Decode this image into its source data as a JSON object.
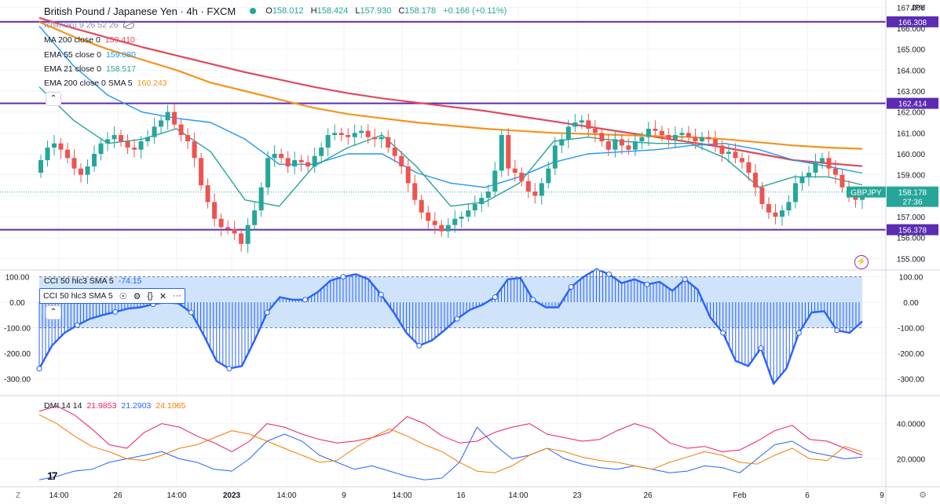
{
  "header": {
    "title": "British Pound / Japanese Yen · 4h · FXCM",
    "open_label": "O",
    "open": "158.012",
    "high_label": "H",
    "high": "158.424",
    "low_label": "L",
    "low": "157.930",
    "close_label": "C",
    "close": "158.178",
    "change": "+0.166 (+0.11%)"
  },
  "currency": "JPY",
  "legends": {
    "ichimoku": "Ichimoku 9 26 52 26",
    "ma200": {
      "label": "MA 200 close 0",
      "value": "159.410",
      "color": "#e0495e"
    },
    "ema55": {
      "label": "EMA 55 close 0",
      "value": "159.080",
      "color": "#2196f3"
    },
    "ema21": {
      "label": "EMA 21 close 0",
      "value": "158.517",
      "color": "#26a69a"
    },
    "ema200": {
      "label": "EMA 200 close 0 SMA 5",
      "value": "160.243",
      "color": "#f7931a"
    },
    "cci": {
      "label": "CCI 50 hlc3 SMA 5",
      "value": "-74.15"
    },
    "cci_toolbar": "CCI 50 hlc3 SMA 5",
    "dmi": {
      "label": "DMI 14 14",
      "plus": "21.9853",
      "minus": "21.2903",
      "adx": "24.1065"
    }
  },
  "symbol_tag": {
    "name": "GBPJPY",
    "price": "158.178",
    "countdown": "27:36"
  },
  "icons": {
    "visibility": "eye-icon",
    "settings": "gear-icon",
    "code": "braces-icon",
    "remove": "close-icon",
    "more": "more-icon",
    "collapse": "chevron-up-icon",
    "flash": "lightning-icon",
    "logo": "tradingview-logo"
  },
  "colors": {
    "up": "#26a69a",
    "down": "#ef5350",
    "level_line": "#5b2bb0",
    "cci_line": "#2962ff",
    "cci_band": "#cfe3fb",
    "dmi_plus": "#e91e63",
    "dmi_minus": "#2962ff",
    "dmi_adx": "#f57c00",
    "tag_bg": "#26a69a"
  },
  "x_axis": {
    "labels": [
      "14:00",
      "26",
      "14:00",
      "2023",
      "14:00",
      "9",
      "14:00",
      "16",
      "14:00",
      "23",
      "26",
      "Feb",
      "6",
      "9"
    ]
  },
  "bottom": {
    "tz_label": "Z"
  },
  "chart_data": [
    {
      "type": "candlestick",
      "title": "British Pound / Japanese Yen · 4h · FXCM",
      "y_axis_labels": [
        "167.000",
        "166.000",
        "165.000",
        "164.000",
        "163.000",
        "162.000",
        "161.000",
        "160.000",
        "159.000",
        "158.000",
        "157.000",
        "156.000",
        "155.000"
      ],
      "ylim": [
        154.6,
        167.2
      ],
      "horizontal_levels": [
        {
          "label": "166.308",
          "value": 166.308
        },
        {
          "label": "162.414",
          "value": 162.414
        },
        {
          "label": "156.378",
          "value": 156.378
        }
      ],
      "last_price": 158.178,
      "close_path": [
        159.7,
        160.3,
        160.5,
        160.2,
        159.8,
        159.3,
        159.0,
        159.4,
        160.0,
        160.5,
        160.7,
        160.9,
        160.6,
        160.3,
        160.2,
        160.6,
        160.8,
        161.3,
        161.6,
        162.0,
        161.4,
        160.9,
        160.6,
        159.8,
        158.5,
        157.7,
        156.9,
        156.5,
        156.4,
        156.2,
        155.7,
        156.6,
        157.3,
        158.4,
        159.8,
        160.0,
        159.8,
        159.4,
        159.7,
        159.6,
        159.4,
        159.9,
        160.3,
        160.9,
        161.0,
        160.9,
        160.8,
        161.0,
        161.1,
        160.8,
        160.7,
        160.8,
        160.3,
        159.9,
        159.4,
        158.6,
        157.8,
        157.2,
        156.8,
        156.6,
        156.3,
        156.6,
        156.9,
        157.0,
        157.3,
        157.6,
        157.9,
        158.2,
        159.2,
        160.9,
        159.3,
        159.1,
        158.7,
        158.2,
        158.0,
        158.6,
        159.3,
        160.4,
        160.7,
        161.3,
        161.5,
        161.6,
        161.2,
        161.0,
        160.6,
        160.2,
        160.7,
        160.4,
        160.2,
        160.6,
        160.8,
        161.2,
        161.1,
        160.9,
        160.7,
        160.9,
        161.0,
        160.8,
        160.6,
        160.8,
        160.7,
        160.4,
        160.0,
        160.1,
        159.8,
        159.6,
        159.1,
        158.4,
        157.6,
        157.2,
        157.0,
        157.3,
        157.7,
        158.6,
        158.9,
        159.1,
        159.6,
        159.8,
        159.3,
        159.0,
        158.4,
        158.0,
        157.8,
        158.178
      ],
      "overlays": [
        {
          "name": "MA 200 close 0",
          "color": "#e0495e",
          "values": [
            166.5,
            166.0,
            165.55,
            165.1,
            164.7,
            164.3,
            163.9,
            163.55,
            163.2,
            162.9,
            162.65,
            162.45,
            162.25,
            162.05,
            161.8,
            161.55,
            161.3,
            161.05,
            160.8,
            160.55,
            160.3,
            160.0,
            159.7,
            159.55,
            159.41
          ]
        },
        {
          "name": "EMA 55 close 0",
          "color": "#2196f3",
          "values": [
            166.1,
            164.2,
            162.8,
            162.0,
            161.7,
            161.5,
            160.7,
            159.5,
            159.5,
            160.0,
            160.0,
            159.1,
            158.6,
            158.4,
            158.9,
            159.6,
            160.0,
            160.1,
            160.2,
            160.4,
            160.5,
            160.2,
            159.7,
            159.4,
            159.08
          ]
        },
        {
          "name": "EMA 21 close 0",
          "color": "#26a69a",
          "values": [
            163.2,
            161.6,
            160.5,
            160.7,
            161.2,
            160.1,
            157.8,
            157.5,
            159.4,
            160.3,
            160.9,
            159.4,
            157.5,
            157.7,
            158.6,
            160.6,
            160.8,
            160.6,
            160.5,
            160.5,
            159.8,
            158.4,
            158.9,
            158.9,
            158.517
          ]
        },
        {
          "name": "EMA 200 close 0 SMA 5",
          "color": "#f7931a",
          "values": [
            166.3,
            165.6,
            165.0,
            164.5,
            164.0,
            163.4,
            163.0,
            162.6,
            162.2,
            161.9,
            161.7,
            161.5,
            161.35,
            161.2,
            161.1,
            161.0,
            160.95,
            160.9,
            160.85,
            160.8,
            160.7,
            160.55,
            160.4,
            160.3,
            160.243
          ]
        }
      ]
    },
    {
      "type": "line",
      "title": "CCI 50 hlc3 SMA 5",
      "y_axis_labels": [
        "100.00",
        "0.00",
        "-100.00",
        "-200.00",
        "-300.00"
      ],
      "ylim": [
        -360,
        120
      ],
      "band": [
        -100,
        100
      ],
      "series": [
        {
          "name": "CCI 50 hlc3 SMA 5",
          "values": [
            -260,
            -170,
            -120,
            -90,
            -65,
            -50,
            -38,
            -25,
            -20,
            -8,
            0,
            -5,
            -40,
            -130,
            -230,
            -260,
            -250,
            -150,
            -40,
            20,
            10,
            10,
            40,
            85,
            100,
            110,
            90,
            30,
            -40,
            -120,
            -170,
            -150,
            -110,
            -65,
            -30,
            -10,
            20,
            90,
            95,
            10,
            -20,
            -20,
            60,
            100,
            130,
            110,
            75,
            90,
            70,
            80,
            45,
            90,
            50,
            -60,
            -120,
            -230,
            -250,
            -180,
            -320,
            -260,
            -120,
            -40,
            -35,
            -110,
            -120,
            -75
          ]
        }
      ]
    },
    {
      "type": "line",
      "title": "DMI 14 14",
      "y_axis_labels": [
        "40.0000",
        "20.0000"
      ],
      "ylim": [
        5,
        55
      ],
      "series": [
        {
          "name": "DMI 14 14 +DI",
          "color": "#e91e63",
          "values": [
            47,
            50,
            45,
            37,
            28,
            26,
            35,
            40,
            38,
            33,
            29,
            24,
            30,
            40,
            38,
            34,
            31,
            29,
            30,
            32,
            35,
            44,
            40,
            33,
            29,
            30,
            35,
            38,
            40,
            34,
            32,
            30,
            31,
            36,
            40,
            37,
            29,
            26,
            27,
            24,
            25,
            30,
            36,
            39,
            31,
            30,
            26,
            22
          ]
        },
        {
          "name": "DMI 14 14 -DI",
          "color": "#2962ff",
          "values": [
            8,
            10,
            13,
            14,
            18,
            20,
            22,
            24,
            20,
            18,
            14,
            13,
            20,
            30,
            34,
            30,
            22,
            18,
            14,
            16,
            13,
            10,
            8,
            9,
            18,
            38,
            28,
            20,
            22,
            26,
            20,
            17,
            15,
            14,
            16,
            14,
            12,
            13,
            16,
            15,
            12,
            20,
            28,
            30,
            24,
            22,
            20,
            21
          ]
        },
        {
          "name": "DMI 14 14 ADX",
          "color": "#f57c00",
          "values": [
            45,
            40,
            33,
            27,
            24,
            20,
            19,
            22,
            26,
            28,
            32,
            36,
            34,
            30,
            26,
            22,
            18,
            19,
            26,
            32,
            37,
            33,
            28,
            24,
            18,
            13,
            12,
            16,
            22,
            26,
            24,
            21,
            19,
            18,
            16,
            14,
            18,
            21,
            24,
            22,
            18,
            17,
            22,
            26,
            20,
            19,
            27,
            24
          ]
        }
      ]
    }
  ]
}
